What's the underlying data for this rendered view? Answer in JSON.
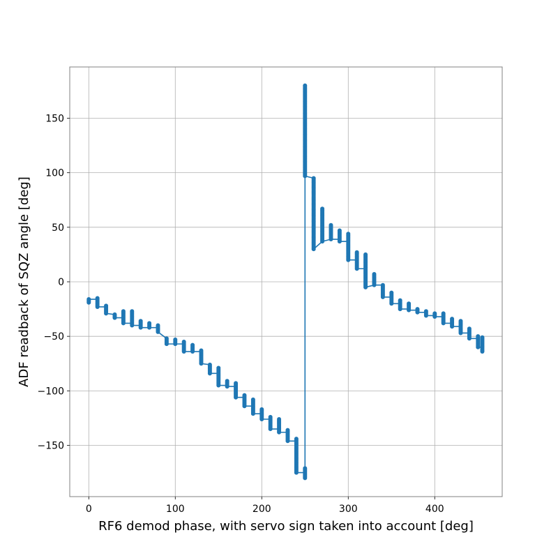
{
  "chart_data": {
    "type": "line",
    "xlabel": "RF6 demod phase, with servo sign taken into account [deg]",
    "ylabel": "ADF readback of SQZ angle [deg]",
    "xlim": [
      -22,
      478
    ],
    "ylim": [
      -197,
      197
    ],
    "xticks": [
      0,
      100,
      200,
      300,
      400
    ],
    "yticks": [
      -150,
      -100,
      -50,
      0,
      50,
      100,
      150
    ],
    "xtick_labels": [
      "0",
      "100",
      "200",
      "300",
      "400"
    ],
    "ytick_labels": [
      "−150",
      "−100",
      "−50",
      "0",
      "50",
      "100",
      "150"
    ],
    "grid": true,
    "color": "#1f77b4",
    "marker": "circle",
    "series": [
      {
        "steps": [
          {
            "x": 0,
            "y_min": -19,
            "y_max": -16
          },
          {
            "x": 10,
            "y_min": -23,
            "y_max": -15
          },
          {
            "x": 20,
            "y_min": -29,
            "y_max": -22
          },
          {
            "x": 30,
            "y_min": -33,
            "y_max": -30
          },
          {
            "x": 40,
            "y_min": -38,
            "y_max": -27
          },
          {
            "x": 50,
            "y_min": -40,
            "y_max": -27
          },
          {
            "x": 60,
            "y_min": -42,
            "y_max": -36
          },
          {
            "x": 70,
            "y_min": -42,
            "y_max": -38
          },
          {
            "x": 80,
            "y_min": -46,
            "y_max": -40
          },
          {
            "x": 90,
            "y_min": -57,
            "y_max": -52
          },
          {
            "x": 100,
            "y_min": -57,
            "y_max": -53
          },
          {
            "x": 110,
            "y_min": -64,
            "y_max": -55
          },
          {
            "x": 120,
            "y_min": -64,
            "y_max": -58
          },
          {
            "x": 130,
            "y_min": -75,
            "y_max": -63
          },
          {
            "x": 140,
            "y_min": -84,
            "y_max": -76
          },
          {
            "x": 150,
            "y_min": -95,
            "y_max": -79
          },
          {
            "x": 160,
            "y_min": -96,
            "y_max": -91
          },
          {
            "x": 170,
            "y_min": -106,
            "y_max": -93
          },
          {
            "x": 180,
            "y_min": -114,
            "y_max": -104
          },
          {
            "x": 190,
            "y_min": -121,
            "y_max": -108
          },
          {
            "x": 200,
            "y_min": -126,
            "y_max": -117
          },
          {
            "x": 210,
            "y_min": -135,
            "y_max": -124
          },
          {
            "x": 220,
            "y_min": -138,
            "y_max": -126
          },
          {
            "x": 230,
            "y_min": -146,
            "y_max": -136
          },
          {
            "x": 240,
            "y_min": -175,
            "y_max": -144
          },
          {
            "x": 250,
            "y_min": -180,
            "y_max": -171
          },
          {
            "x": 250,
            "y_min": 97,
            "y_max": 180
          },
          {
            "x": 260,
            "y_min": 30,
            "y_max": 95
          },
          {
            "x": 270,
            "y_min": 37,
            "y_max": 67
          },
          {
            "x": 280,
            "y_min": 39,
            "y_max": 52
          },
          {
            "x": 290,
            "y_min": 37,
            "y_max": 47
          },
          {
            "x": 300,
            "y_min": 20,
            "y_max": 44
          },
          {
            "x": 310,
            "y_min": 12,
            "y_max": 27
          },
          {
            "x": 320,
            "y_min": -5,
            "y_max": 25
          },
          {
            "x": 330,
            "y_min": -3,
            "y_max": 7
          },
          {
            "x": 340,
            "y_min": -14,
            "y_max": -3
          },
          {
            "x": 350,
            "y_min": -20,
            "y_max": -10
          },
          {
            "x": 360,
            "y_min": -25,
            "y_max": -17
          },
          {
            "x": 370,
            "y_min": -26,
            "y_max": -20
          },
          {
            "x": 380,
            "y_min": -28,
            "y_max": -25
          },
          {
            "x": 390,
            "y_min": -31,
            "y_max": -27
          },
          {
            "x": 400,
            "y_min": -32,
            "y_max": -29
          },
          {
            "x": 410,
            "y_min": -38,
            "y_max": -29
          },
          {
            "x": 420,
            "y_min": -41,
            "y_max": -34
          },
          {
            "x": 430,
            "y_min": -47,
            "y_max": -36
          },
          {
            "x": 440,
            "y_min": -52,
            "y_max": -43
          },
          {
            "x": 450,
            "y_min": -60,
            "y_max": -50
          },
          {
            "x": 455,
            "y_min": -64,
            "y_max": -51
          }
        ]
      }
    ]
  }
}
